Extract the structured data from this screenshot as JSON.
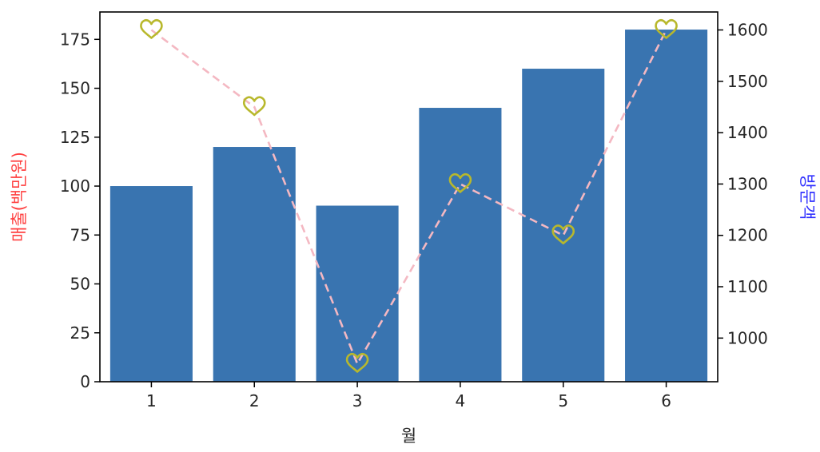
{
  "chart_data": {
    "type": "bar+line",
    "categories": [
      "1",
      "2",
      "3",
      "4",
      "5",
      "6"
    ],
    "xlabel": "월",
    "bars": {
      "axis": "left",
      "ylabel": "매출(백만원)",
      "ylabel_color": "#ff4040",
      "color": "#3974b0",
      "values": [
        100,
        120,
        90,
        140,
        160,
        180
      ],
      "ylim": [
        0,
        189
      ],
      "ticks": [
        0,
        25,
        50,
        75,
        100,
        125,
        150,
        175
      ]
    },
    "line": {
      "axis": "right",
      "ylabel": "방문객",
      "ylabel_color": "#3030ff",
      "line_color": "#f4b8c2",
      "line_style": "dashed",
      "marker": "heart-icon",
      "marker_color": "#b8b82c",
      "values": [
        1600,
        1450,
        950,
        1300,
        1200,
        1600
      ],
      "ylim": [
        915,
        1635
      ],
      "ticks": [
        1000,
        1100,
        1200,
        1300,
        1400,
        1500,
        1600
      ]
    },
    "grid": false,
    "legend": "none"
  }
}
